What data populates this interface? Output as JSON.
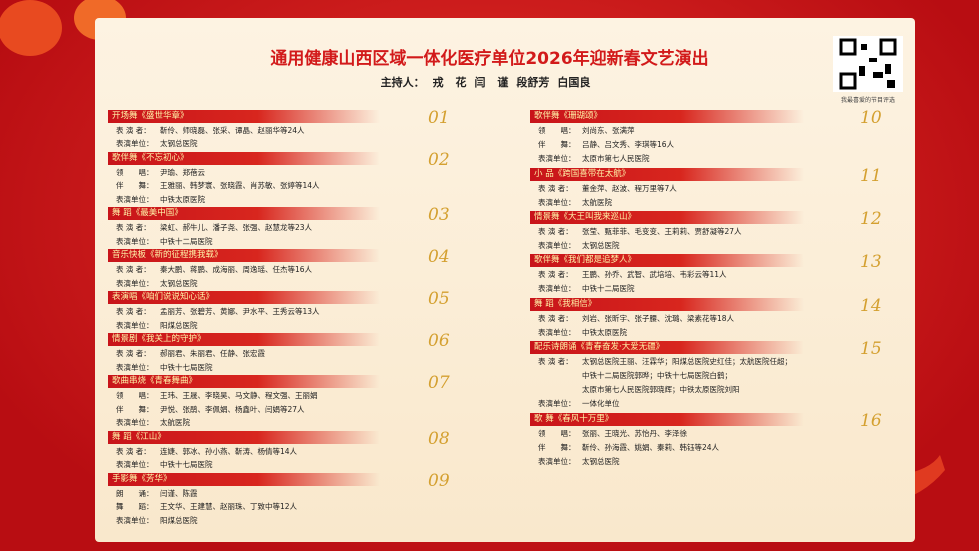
{
  "header": {
    "title": "通用健康山西区域一体化医疗单位2026年迎新春文艺演出",
    "hosts_label": "主持人：",
    "hosts": [
      "戎 花",
      "闫 谨",
      "段舒芳",
      "白国良"
    ],
    "qr_caption": "我最喜爱的节目评选"
  },
  "columns": [
    {
      "items": [
        {
          "number": "01",
          "title": "开场舞《盛世华章》",
          "rows": [
            {
              "label": "表 演 者：",
              "value": "靳伶、师晓磊、张采、谭晶、赵丽华等24人"
            },
            {
              "label": "表演单位：",
              "value": "太钢总医院"
            }
          ]
        },
        {
          "number": "02",
          "title": "歌伴舞《不忘初心》",
          "rows": [
            {
              "label": "领　　唱：",
              "value": "尹瑜、郑蓓云"
            },
            {
              "label": "伴　　舞：",
              "value": "王雅丽、韩梦寰、张晓霞、肖苏敏、张婷等14人"
            },
            {
              "label": "表演单位：",
              "value": "中铁太原医院"
            }
          ]
        },
        {
          "number": "03",
          "title": "舞 蹈《最美中国》",
          "rows": [
            {
              "label": "表 演 者：",
              "value": "梁虹、郝牛儿、潘子尧、张强、赵慧龙等23人"
            },
            {
              "label": "表演单位：",
              "value": "中铁十二局医院"
            }
          ]
        },
        {
          "number": "04",
          "title": "音乐快板《新的征程携我载》",
          "rows": [
            {
              "label": "表 演 者：",
              "value": "秦大鹏、蒋鹏、成海丽、周逸瑶、任杰等16人"
            },
            {
              "label": "表演单位：",
              "value": "太钢总医院"
            }
          ]
        },
        {
          "number": "05",
          "title": "表演唱《咱们说说知心话》",
          "rows": [
            {
              "label": "表 演 者：",
              "value": "孟丽芳、张碧芳、黄娜、尹水平、王秀云等13人"
            },
            {
              "label": "表演单位：",
              "value": "阳煤总医院"
            }
          ]
        },
        {
          "number": "06",
          "title": "情景剧《我关上的守护》",
          "rows": [
            {
              "label": "表 演 者：",
              "value": "郝丽君、朱丽君、任静、张宏霞"
            },
            {
              "label": "表演单位：",
              "value": "中铁十七局医院"
            }
          ]
        },
        {
          "number": "07",
          "title": "歌曲串烧《青春舞曲》",
          "rows": [
            {
              "label": "领　　唱：",
              "value": "王玮、王晟、李晓昊、马文静、程文强、王丽娟"
            },
            {
              "label": "伴　　舞：",
              "value": "尹悦、张鹃、李佩娟、杨鑫叶、闫娟等27人"
            },
            {
              "label": "表演单位：",
              "value": "太航医院"
            }
          ]
        },
        {
          "number": "08",
          "title": "舞 蹈《江山》",
          "rows": [
            {
              "label": "表 演 者：",
              "value": "连婕、郭冰、孙小燕、靳涛、杨倩等14人"
            },
            {
              "label": "表演单位：",
              "value": "中铁十七局医院"
            }
          ]
        },
        {
          "number": "09",
          "title": "手影舞《芳华》",
          "rows": [
            {
              "label": "朗　　诵：",
              "value": "闫谨、陈霞"
            },
            {
              "label": "舞　　蹈：",
              "value": "王文华、王建慧、赵丽珠、丁致中等12人"
            },
            {
              "label": "表演单位：",
              "value": "阳煤总医院"
            }
          ]
        }
      ]
    },
    {
      "items": [
        {
          "number": "10",
          "title": "歌伴舞《珊瑚颂》",
          "rows": [
            {
              "label": "领　　唱：",
              "value": "刘尚东、张满萍"
            },
            {
              "label": "伴　　舞：",
              "value": "吕静、吕文秀、李琪等16人"
            },
            {
              "label": "表演单位：",
              "value": "太原市第七人民医院"
            }
          ]
        },
        {
          "number": "11",
          "title": "小 品《跨国喜带在太航》",
          "rows": [
            {
              "label": "表 演 者：",
              "value": "董金萍、赵波、程万里等7人"
            },
            {
              "label": "表演单位：",
              "value": "太航医院"
            }
          ]
        },
        {
          "number": "12",
          "title": "情景舞《大王叫我来巡山》",
          "rows": [
            {
              "label": "表 演 者：",
              "value": "张莹、甄菲菲、毛变变、王莉莉、贾舒凝等27人"
            },
            {
              "label": "表演单位：",
              "value": "太钢总医院"
            }
          ]
        },
        {
          "number": "13",
          "title": "歌伴舞《我们都是追梦人》",
          "rows": [
            {
              "label": "表 演 者：",
              "value": "王鹏、孙乔、武智、武培培、韦彩云等11人"
            },
            {
              "label": "表演单位：",
              "value": "中铁十二局医院"
            }
          ]
        },
        {
          "number": "14",
          "title": "舞 蹈《我相信》",
          "rows": [
            {
              "label": "表 演 者：",
              "value": "刘岩、张昕宇、张子腰、沈璐、梁素花等18人"
            },
            {
              "label": "表演单位：",
              "value": "中铁太原医院"
            }
          ]
        },
        {
          "number": "15",
          "title": "配乐诗朗诵《青春奋发·大爱无疆》",
          "rows": [
            {
              "label": "表 演 者：",
              "value": [
                "太钢总医院王丽、汪霖华；阳煤总医院史红佳；太航医院任超；",
                "中铁十二局医院郭晔；中铁十七局医院白鹤；",
                "太原市第七人民医院郭晓辉；中铁太原医院刘阳"
              ]
            },
            {
              "label": "表演单位：",
              "value": "一体化单位"
            }
          ]
        },
        {
          "number": "16",
          "title": "歌 舞《春风十万里》",
          "rows": [
            {
              "label": "领　　唱：",
              "value": "张丽、王晓光、苏怡丹、李泽徐"
            },
            {
              "label": "伴　　舞：",
              "value": "靳伶、孙海霞、姚娟、秦莉、韩钰等24人"
            },
            {
              "label": "表演单位：",
              "value": "太钢总医院"
            }
          ]
        }
      ]
    }
  ]
}
